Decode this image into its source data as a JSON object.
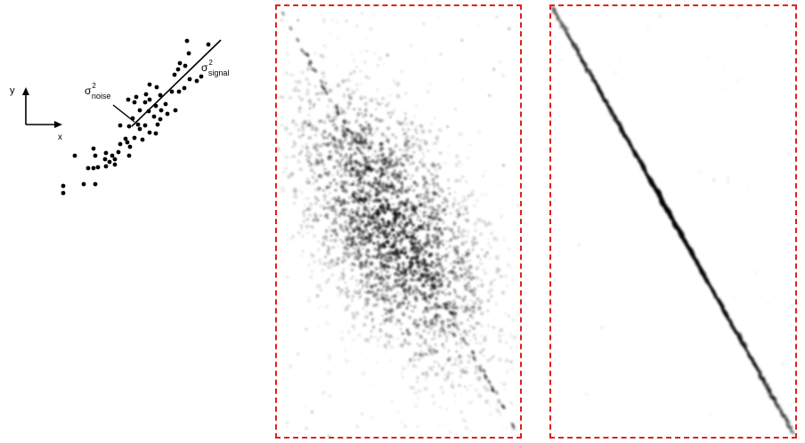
{
  "left_diagram": {
    "axis_y_label": "y",
    "axis_x_label": "x",
    "noise_symbol": "σ",
    "noise_superscript": "2",
    "noise_subscript": "noise",
    "signal_symbol": "σ",
    "signal_superscript": "2",
    "signal_subscript": "signal"
  },
  "colors": {
    "frame_border": "#e0201b",
    "ink": "#000000",
    "background": "#ffffff"
  }
}
